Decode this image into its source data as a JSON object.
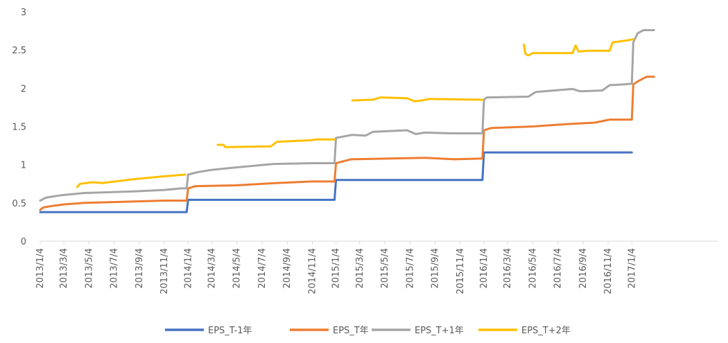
{
  "chart_data": {
    "type": "line",
    "title": "",
    "xlabel": "",
    "ylabel": "",
    "ylim": [
      0,
      3
    ],
    "yticks": [
      0,
      0.5,
      1,
      1.5,
      2,
      2.5,
      3
    ],
    "ytick_labels": [
      "0",
      "0.5",
      "1",
      "1.5",
      "2",
      "2.5",
      "3"
    ],
    "xlim": [
      2013.0,
      2017.58
    ],
    "x_ticks": [
      {
        "label": "2013/1/4",
        "x": 2013.0
      },
      {
        "label": "2013/3/4",
        "x": 2013.16
      },
      {
        "label": "2013/5/4",
        "x": 2013.33
      },
      {
        "label": "2013/7/4",
        "x": 2013.5
      },
      {
        "label": "2013/9/4",
        "x": 2013.67
      },
      {
        "label": "2013/11/4",
        "x": 2013.84
      },
      {
        "label": "2014/1/4",
        "x": 2014.0
      },
      {
        "label": "2014/3/4",
        "x": 2014.16
      },
      {
        "label": "2014/5/4",
        "x": 2014.33
      },
      {
        "label": "2014/7/4",
        "x": 2014.5
      },
      {
        "label": "2014/9/4",
        "x": 2014.67
      },
      {
        "label": "2014/11/4",
        "x": 2014.84
      },
      {
        "label": "2015/1/4",
        "x": 2015.0
      },
      {
        "label": "2015/3/4",
        "x": 2015.16
      },
      {
        "label": "2015/5/4",
        "x": 2015.33
      },
      {
        "label": "2015/7/4",
        "x": 2015.5
      },
      {
        "label": "2015/9/4",
        "x": 2015.67
      },
      {
        "label": "2015/11/4",
        "x": 2015.84
      },
      {
        "label": "2016/1/4",
        "x": 2016.0
      },
      {
        "label": "2016/3/4",
        "x": 2016.16
      },
      {
        "label": "2016/5/4",
        "x": 2016.33
      },
      {
        "label": "2016/7/4",
        "x": 2016.5
      },
      {
        "label": "2016/9/4",
        "x": 2016.67
      },
      {
        "label": "2016/11/4",
        "x": 2016.84
      },
      {
        "label": "2017/1/4",
        "x": 2017.0
      }
    ],
    "legend_position": "bottom",
    "grid": false,
    "series": [
      {
        "name": "EPS_T-1年",
        "color": "#4472C4",
        "points": [
          [
            2013.0,
            0.38
          ],
          [
            2013.99,
            0.38
          ],
          [
            2014.0,
            0.54
          ],
          [
            2014.99,
            0.54
          ],
          [
            2015.0,
            0.8
          ],
          [
            2015.99,
            0.8
          ],
          [
            2016.0,
            1.16
          ],
          [
            2017.0,
            1.16
          ]
        ]
      },
      {
        "name": "EPS_T年",
        "color": "#ED7D31",
        "points": [
          [
            2013.0,
            0.41
          ],
          [
            2013.02,
            0.44
          ],
          [
            2013.08,
            0.46
          ],
          [
            2013.16,
            0.48
          ],
          [
            2013.3,
            0.5
          ],
          [
            2013.66,
            0.52
          ],
          [
            2013.84,
            0.53
          ],
          [
            2013.99,
            0.53
          ],
          [
            2014.0,
            0.69
          ],
          [
            2014.05,
            0.72
          ],
          [
            2014.32,
            0.73
          ],
          [
            2014.6,
            0.76
          ],
          [
            2014.84,
            0.78
          ],
          [
            2014.99,
            0.78
          ],
          [
            2015.0,
            1.02
          ],
          [
            2015.1,
            1.07
          ],
          [
            2015.6,
            1.09
          ],
          [
            2015.8,
            1.07
          ],
          [
            2015.99,
            1.08
          ],
          [
            2016.0,
            1.45
          ],
          [
            2016.05,
            1.48
          ],
          [
            2016.33,
            1.5
          ],
          [
            2016.55,
            1.53
          ],
          [
            2016.75,
            1.55
          ],
          [
            2016.85,
            1.59
          ],
          [
            2017.0,
            1.59
          ],
          [
            2017.01,
            2.05
          ],
          [
            2017.05,
            2.1
          ],
          [
            2017.1,
            2.15
          ],
          [
            2017.15,
            2.15
          ]
        ]
      },
      {
        "name": "EPS_T+1年",
        "color": "#A5A5A5",
        "points": [
          [
            2013.0,
            0.53
          ],
          [
            2013.04,
            0.57
          ],
          [
            2013.14,
            0.6
          ],
          [
            2013.3,
            0.63
          ],
          [
            2013.63,
            0.65
          ],
          [
            2013.84,
            0.67
          ],
          [
            2013.95,
            0.69
          ],
          [
            2013.99,
            0.69
          ],
          [
            2014.0,
            0.87
          ],
          [
            2014.06,
            0.9
          ],
          [
            2014.15,
            0.93
          ],
          [
            2014.3,
            0.96
          ],
          [
            2014.58,
            1.01
          ],
          [
            2014.84,
            1.02
          ],
          [
            2014.99,
            1.02
          ],
          [
            2015.0,
            1.35
          ],
          [
            2015.11,
            1.39
          ],
          [
            2015.2,
            1.38
          ],
          [
            2015.25,
            1.43
          ],
          [
            2015.48,
            1.45
          ],
          [
            2015.54,
            1.4
          ],
          [
            2015.6,
            1.42
          ],
          [
            2015.77,
            1.41
          ],
          [
            2015.99,
            1.41
          ],
          [
            2016.0,
            1.85
          ],
          [
            2016.02,
            1.88
          ],
          [
            2016.3,
            1.89
          ],
          [
            2016.35,
            1.95
          ],
          [
            2016.6,
            1.99
          ],
          [
            2016.65,
            1.96
          ],
          [
            2016.8,
            1.97
          ],
          [
            2016.85,
            2.04
          ],
          [
            2016.95,
            2.05
          ],
          [
            2017.0,
            2.06
          ],
          [
            2017.01,
            2.6
          ],
          [
            2017.04,
            2.72
          ],
          [
            2017.08,
            2.76
          ],
          [
            2017.15,
            2.76
          ]
        ]
      },
      {
        "name": "EPS_T+2年",
        "color": "#FFC000",
        "segments": [
          [
            [
              2013.25,
              0.71
            ],
            [
              2013.27,
              0.75
            ],
            [
              2013.35,
              0.77
            ],
            [
              2013.42,
              0.76
            ],
            [
              2013.55,
              0.79
            ],
            [
              2013.63,
              0.81
            ],
            [
              2013.85,
              0.85
            ],
            [
              2013.98,
              0.87
            ]
          ],
          [
            [
              2014.2,
              1.26
            ],
            [
              2014.24,
              1.26
            ],
            [
              2014.25,
              1.23
            ],
            [
              2014.56,
              1.24
            ],
            [
              2014.6,
              1.3
            ],
            [
              2014.83,
              1.32
            ],
            [
              2014.87,
              1.33
            ],
            [
              2014.99,
              1.33
            ]
          ],
          [
            [
              2015.11,
              1.84
            ],
            [
              2015.25,
              1.85
            ],
            [
              2015.3,
              1.88
            ],
            [
              2015.48,
              1.87
            ],
            [
              2015.53,
              1.83
            ],
            [
              2015.58,
              1.84
            ],
            [
              2015.63,
              1.86
            ],
            [
              2015.95,
              1.85
            ],
            [
              2015.99,
              1.85
            ]
          ],
          [
            [
              2016.27,
              2.57
            ],
            [
              2016.28,
              2.45
            ],
            [
              2016.3,
              2.43
            ],
            [
              2016.33,
              2.46
            ],
            [
              2016.6,
              2.46
            ],
            [
              2016.62,
              2.56
            ],
            [
              2016.64,
              2.48
            ],
            [
              2016.7,
              2.49
            ],
            [
              2016.85,
              2.49
            ],
            [
              2016.87,
              2.6
            ],
            [
              2016.95,
              2.62
            ],
            [
              2017.01,
              2.64
            ]
          ]
        ]
      }
    ]
  }
}
